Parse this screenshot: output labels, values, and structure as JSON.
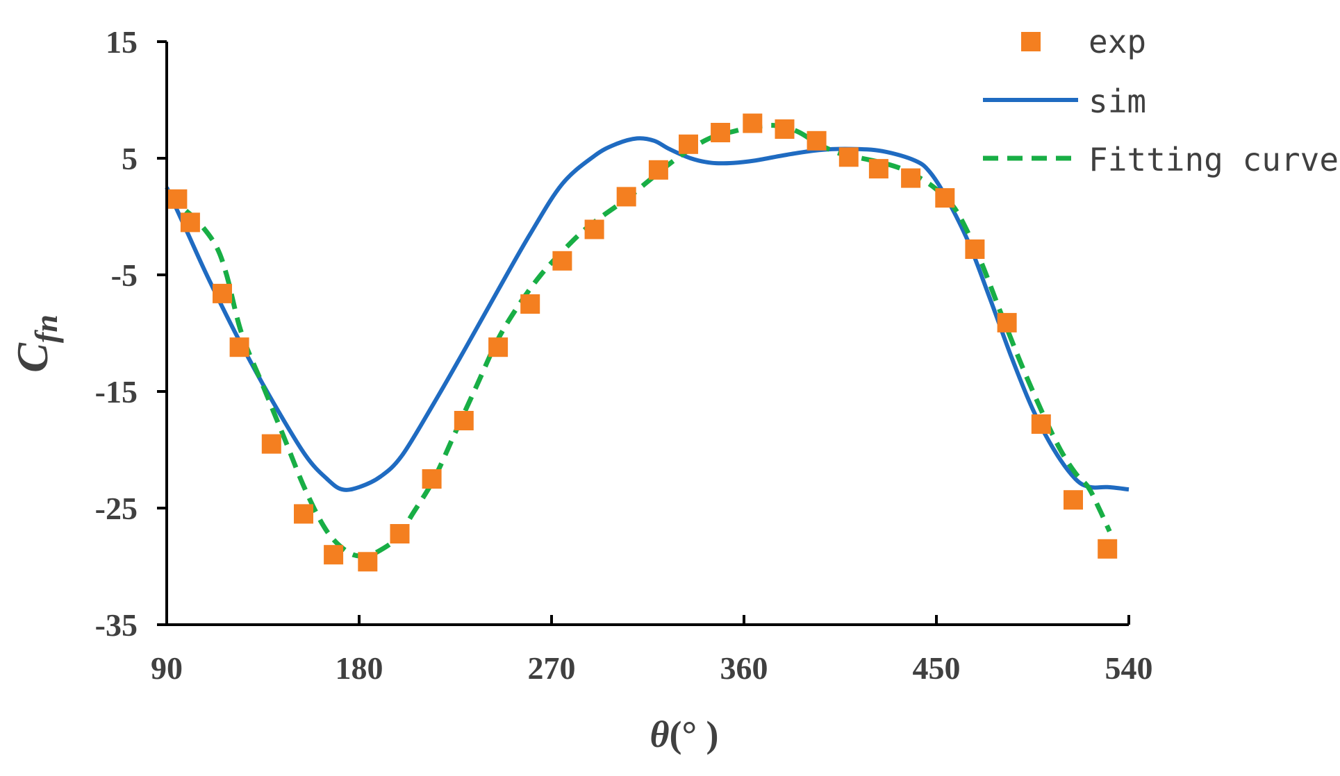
{
  "chart_data": {
    "type": "line",
    "title": "",
    "xlabel": "θ(°)",
    "xlabel_main": "θ",
    "xlabel_unit": "(°  )",
    "ylabel": "Cfn",
    "ylabel_main": "C",
    "ylabel_sub": "fn",
    "xlim": [
      90,
      540
    ],
    "ylim": [
      -35,
      15
    ],
    "xticks": [
      90,
      180,
      270,
      360,
      450,
      540
    ],
    "yticks": [
      15,
      5,
      -5,
      -15,
      -25,
      -35
    ],
    "ytick_labels": [
      "15",
      "5",
      "-5",
      "-15",
      "-25",
      "-35"
    ],
    "xtick_labels": [
      "90",
      "180",
      "270",
      "360",
      "450",
      "540"
    ],
    "grid": false,
    "legend_position": "top-right",
    "series": [
      {
        "name": "exp",
        "style": "markers",
        "marker": "square",
        "color": "#F47F20",
        "x": [
          95,
          101,
          116,
          124,
          139,
          154,
          168,
          184,
          199,
          214,
          229,
          245,
          260,
          275,
          290,
          305,
          320,
          334,
          349,
          364,
          379,
          394,
          409,
          423,
          438,
          454,
          468,
          483,
          499,
          514,
          530
        ],
        "y": [
          1.5,
          -0.5,
          -6.6,
          -11.2,
          -19.5,
          -25.5,
          -29,
          -29.6,
          -27.2,
          -22.5,
          -17.5,
          -11.2,
          -7.5,
          -3.8,
          -1.1,
          1.7,
          4,
          6.2,
          7.2,
          8,
          7.5,
          6.5,
          5.1,
          4.1,
          3.3,
          1.6,
          -2.8,
          -9.1,
          -17.8,
          -24.3,
          -28.5
        ]
      },
      {
        "name": "sim",
        "style": "solid",
        "color": "#1F6BC1",
        "x": [
          90,
          100,
          110,
          125,
          140,
          155,
          165,
          172,
          180,
          190,
          200,
          215,
          230,
          245,
          260,
          275,
          290,
          300,
          310,
          318,
          325,
          335,
          345,
          355,
          365,
          380,
          395,
          410,
          425,
          440,
          447,
          455,
          465,
          475,
          485,
          495,
          505,
          515,
          522,
          530,
          540
        ],
        "y": [
          2.5,
          -1.5,
          -5.5,
          -11,
          -16,
          -20.5,
          -22.5,
          -23.4,
          -23.2,
          -22.3,
          -20.5,
          -16,
          -11.2,
          -6.3,
          -1.5,
          2.8,
          5.2,
          6.2,
          6.7,
          6.5,
          5.8,
          5,
          4.6,
          4.6,
          4.8,
          5.3,
          5.7,
          5.8,
          5.6,
          4.8,
          3.8,
          1.5,
          -2.2,
          -7,
          -12,
          -16.5,
          -20,
          -22.5,
          -23.2,
          -23.2,
          -23.4
        ]
      },
      {
        "name": "Fitting curve",
        "style": "dashed",
        "color": "#18AE45",
        "x": [
          99,
          105,
          113,
          118,
          125,
          135,
          145,
          155,
          165,
          175,
          183,
          190,
          198,
          205,
          215,
          225,
          235,
          245,
          255,
          265,
          275,
          285,
          295,
          305,
          315,
          325,
          335,
          345,
          355,
          365,
          375,
          385,
          395,
          405,
          415,
          425,
          435,
          445,
          452,
          460,
          470,
          480,
          490,
          500,
          508,
          515,
          521,
          526,
          531
        ],
        "y": [
          0.5,
          -0.5,
          -2.5,
          -5,
          -10,
          -14.5,
          -19,
          -23.5,
          -27,
          -28.8,
          -29.1,
          -28.6,
          -27.5,
          -25.5,
          -22.5,
          -18.5,
          -14.5,
          -10.5,
          -7.5,
          -5,
          -3,
          -1.2,
          0.2,
          1.5,
          3,
          4.5,
          5.8,
          6.8,
          7.3,
          7.7,
          7.8,
          7.3,
          6.2,
          5.4,
          5,
          4.6,
          4,
          3,
          2,
          0.3,
          -3.5,
          -8.2,
          -12.8,
          -17,
          -20,
          -22,
          -23.2,
          -25,
          -27
        ]
      }
    ]
  }
}
